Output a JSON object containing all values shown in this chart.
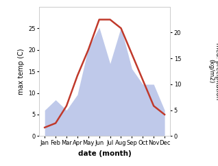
{
  "months": [
    "Jan",
    "Feb",
    "Mar",
    "Apr",
    "May",
    "Jun",
    "Jul",
    "Aug",
    "Sep",
    "Oct",
    "Nov",
    "Dec"
  ],
  "temperature": [
    2,
    3,
    7,
    14,
    20,
    27,
    27,
    25,
    19,
    13,
    7,
    5
  ],
  "precipitation": [
    5,
    7,
    5,
    8,
    17,
    21,
    14,
    21,
    13,
    10,
    10,
    5
  ],
  "temp_color": "#c0392b",
  "precip_color_fill": "#b8c4e8",
  "ylabel_left": "max temp (C)",
  "ylabel_right": "med. precipitation\n(kg/m2)",
  "xlabel": "date (month)",
  "ylim_left": [
    0,
    30
  ],
  "ylim_right": [
    0,
    25
  ],
  "yticks_left": [
    0,
    5,
    10,
    15,
    20,
    25
  ],
  "yticks_right": [
    0,
    5,
    10,
    15,
    20
  ],
  "background_color": "#ffffff"
}
